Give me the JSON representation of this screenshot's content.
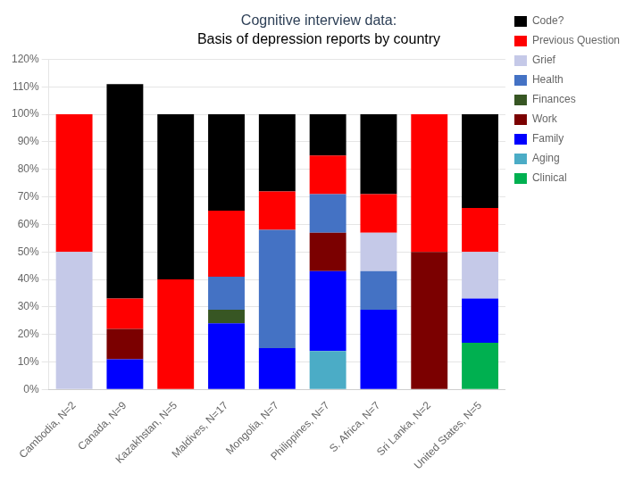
{
  "chart_data": {
    "type": "bar",
    "stacked": true,
    "title": "Cognitive interview data:",
    "subtitle": "Basis of depression reports by country",
    "categories": [
      "Cambodia, N=2",
      "Canada, N=9",
      "Kazakhstan, N=5",
      "Maldives, N=17",
      "Mongolia, N=7",
      "Philippines, N=7",
      "S. Africa, N=7",
      "Sri Lanka, N=2",
      "United States, N=5"
    ],
    "series": [
      {
        "name": "Clinical",
        "color": "#00B050",
        "values": [
          0,
          0,
          0,
          0,
          0,
          0,
          0,
          0,
          17
        ]
      },
      {
        "name": "Aging",
        "color": "#4BACC6",
        "values": [
          0,
          0,
          0,
          0,
          0,
          14,
          0,
          0,
          0
        ]
      },
      {
        "name": "Family",
        "color": "#0000FF",
        "values": [
          0,
          11,
          0,
          24,
          15,
          29,
          29,
          0,
          16
        ]
      },
      {
        "name": "Work",
        "color": "#7B0000",
        "values": [
          0,
          11,
          0,
          0,
          0,
          14,
          0,
          50,
          0
        ]
      },
      {
        "name": "Finances",
        "color": "#375623",
        "values": [
          0,
          0,
          0,
          5,
          0,
          0,
          0,
          0,
          0
        ]
      },
      {
        "name": "Health",
        "color": "#4472C4",
        "values": [
          0,
          0,
          0,
          12,
          43,
          14,
          14,
          0,
          0
        ]
      },
      {
        "name": "Grief",
        "color": "#C5C9E8",
        "values": [
          50,
          0,
          0,
          0,
          0,
          0,
          14,
          0,
          17
        ]
      },
      {
        "name": "Previous Question",
        "color": "#FF0000",
        "values": [
          50,
          11,
          40,
          24,
          14,
          14,
          14,
          50,
          16
        ]
      },
      {
        "name": "Code?",
        "color": "#000000",
        "values": [
          0,
          78,
          60,
          35,
          28,
          15,
          29,
          0,
          34
        ]
      }
    ],
    "ylim": [
      0,
      120
    ],
    "yticks": [
      {
        "value": 0,
        "label": "0%"
      },
      {
        "value": 10,
        "label": "10%"
      },
      {
        "value": 20,
        "label": "20%"
      },
      {
        "value": 30,
        "label": "30%"
      },
      {
        "value": 40,
        "label": "40%"
      },
      {
        "value": 50,
        "label": "50%"
      },
      {
        "value": 60,
        "label": "60%"
      },
      {
        "value": 70,
        "label": "70%"
      },
      {
        "value": 80,
        "label": "80%"
      },
      {
        "value": 90,
        "label": "90%"
      },
      {
        "value": 100,
        "label": "100%"
      },
      {
        "value": 110,
        "label": "110%"
      },
      {
        "value": 120,
        "label": "120%"
      }
    ],
    "grid": true,
    "legend": "right"
  }
}
